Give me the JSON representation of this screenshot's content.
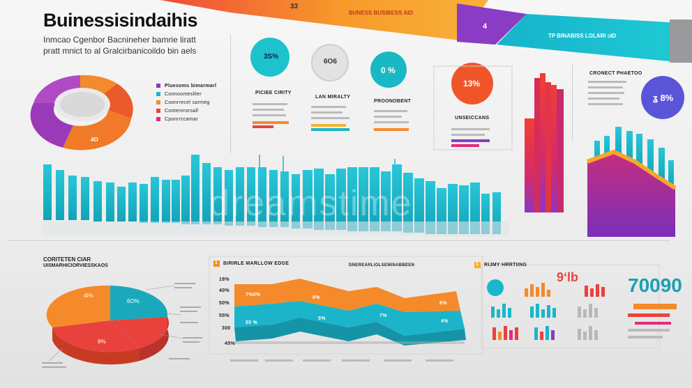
{
  "header": {
    "title": "Buinessisindaihis",
    "subtitle_line1": "Inmcao Cgenbor Bacnineher bamrie liratt",
    "subtitle_line2": "pratt mnict to al Gralcirbanicoildo bin aels",
    "banner_center": "33",
    "banner_center_label": "BUNESS BUSIBESS AID",
    "banner_right_number": "4",
    "banner_right_label": "TP BINABISS LOLARI ɔID"
  },
  "circles": [
    {
      "label": "3S%",
      "color": "#1cc2cc"
    },
    {
      "label": "6O6",
      "color": "#e4e4e4"
    },
    {
      "label": "0 %",
      "color": "#1ab8c4"
    },
    {
      "label": "13%",
      "color": "#f0552a"
    },
    {
      "label": "ʓ 8%",
      "color": "#5a55d8"
    }
  ],
  "kpi_labels": {
    "k1": "PICIEE CIRITY",
    "k2": "LAN MIRALTY",
    "k3": "PROONOBENT",
    "k4": "UNSEICCANS",
    "k5": "CRONECT PHAETOO"
  },
  "donut": {
    "value_label": "4O",
    "legend": [
      "Pluesoms bimarmarl",
      "Connoomesliler",
      "Coonrrecel sarmeg",
      "Contenrrorsall",
      "Cponrrccamar"
    ]
  },
  "sections": {
    "pie_title_line1": "CORITETEN CIAR",
    "pie_title_line2": "UISMARHICIORVIESSKAOS",
    "middle_title_num": "1",
    "middle_title": "BIRIRLE MARLLOW EDGE",
    "middle_caption": "DNEREARLIOLSEMINABBEEN",
    "right_title_num": "1",
    "right_title": "RIJMY HRRTIING"
  },
  "pie": {
    "labels": [
      "4I%",
      "6O%",
      "8%"
    ]
  },
  "ribbon": {
    "yticks": [
      "18%",
      "40%",
      "50%",
      "55%",
      "300",
      "45%"
    ],
    "top_labels": [
      "7%0%",
      "8%",
      "6%"
    ],
    "bottom_labels": [
      "55 %",
      "5%",
      "7%",
      "4%"
    ]
  },
  "right_panel": {
    "big_number": "70090",
    "mini_red": "9ʻlb"
  },
  "watermark": "dreamstime",
  "colors": {
    "teal": "#1ab6c9",
    "orange": "#f58a2a",
    "red": "#e9423c",
    "purple": "#8a3cc0",
    "magenta": "#e22b7a"
  }
}
